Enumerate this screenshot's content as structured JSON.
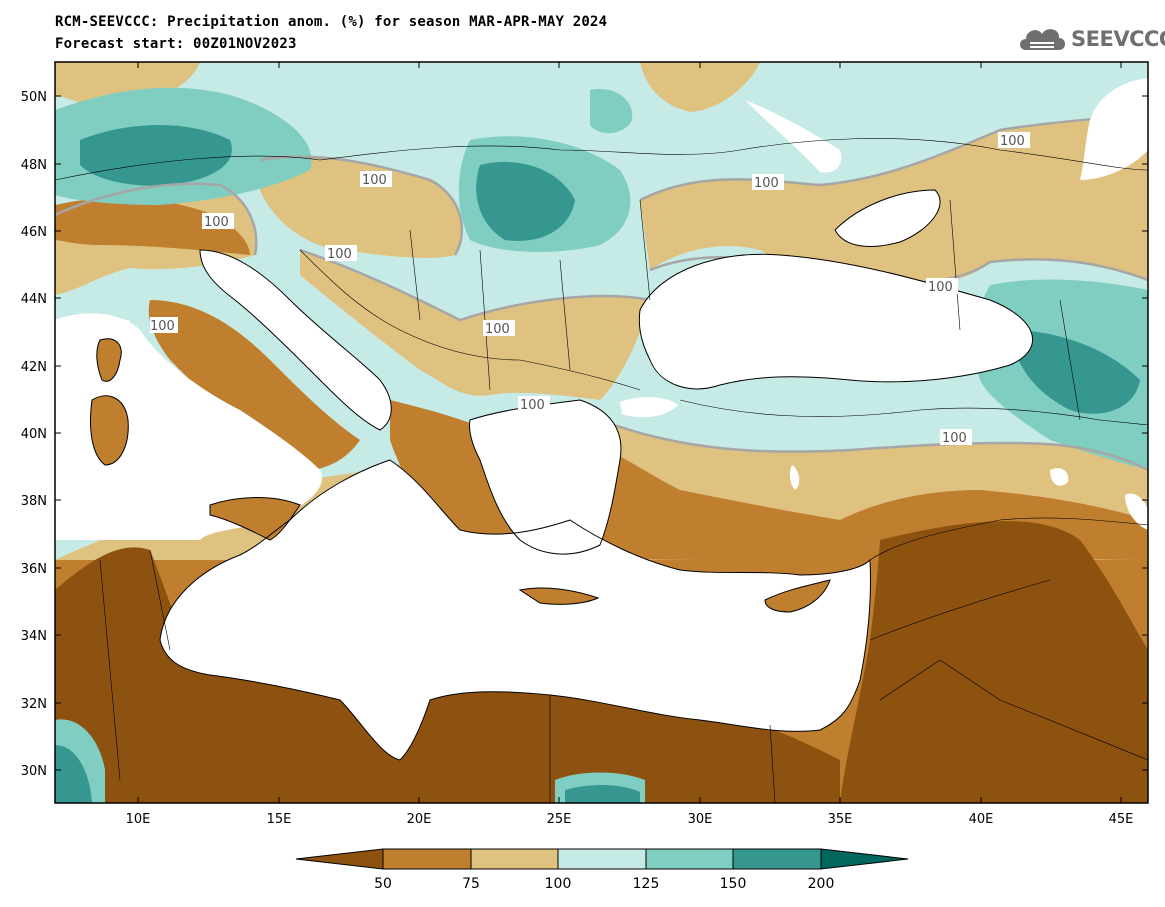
{
  "header": {
    "title_line1": "RCM-SEEVCCC: Precipitation anom. (%) for season MAR-APR-MAY 2024",
    "title_line2": "Forecast start: 00Z01NOV2023",
    "logo_text": "SEEVCCC"
  },
  "map": {
    "lat_labels": [
      "50N",
      "48N",
      "46N",
      "44N",
      "42N",
      "40N",
      "38N",
      "36N",
      "34N",
      "32N",
      "30N"
    ],
    "lon_labels": [
      "10E",
      "15E",
      "20E",
      "25E",
      "30E",
      "35E",
      "40E",
      "45E"
    ],
    "contour_labels": [
      "100",
      "100",
      "100",
      "100",
      "100",
      "100",
      "100",
      "100",
      "100",
      "100"
    ],
    "land_icon": "land-mass",
    "sea_icon": "sea-mask"
  },
  "colorbar": {
    "labels": [
      "50",
      "75",
      "100",
      "125",
      "150",
      "200"
    ],
    "colors": [
      "#8d520f",
      "#bf7f2f",
      "#dfc180",
      "#c6ebe6",
      "#80cdc1",
      "#35978f",
      "#01665e"
    ]
  }
}
